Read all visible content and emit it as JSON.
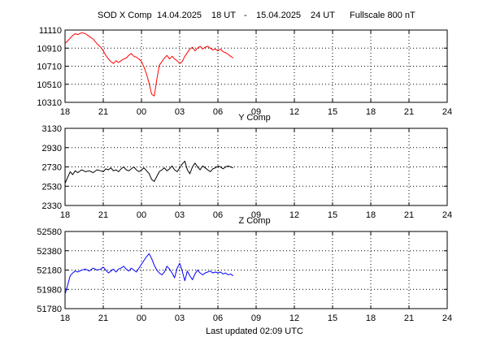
{
  "header": {
    "station": "SOD X Comp",
    "start_date": "14.04.2025",
    "start_hour": "18 UT",
    "dash": "-",
    "end_date": "15.04.2025",
    "end_hour": "24 UT",
    "fullscale": "Fullscale 800 nT"
  },
  "footer": {
    "updated": "Last updated  02:09 UTC"
  },
  "x_tick_labels": [
    "18",
    "21",
    "00",
    "03",
    "06",
    "09",
    "12",
    "15",
    "18",
    "21",
    "24"
  ],
  "chart_data": [
    {
      "type": "line",
      "title": "",
      "color": "#ff0000",
      "xlabel": "",
      "ylabel": "",
      "xlim": [
        0,
        30
      ],
      "ylim": [
        10310,
        11110
      ],
      "y_ticks": [
        10310,
        10510,
        10710,
        10910,
        11110
      ],
      "grid": true,
      "series": [
        {
          "x": [
            0,
            0.2,
            0.4,
            0.6,
            0.8,
            1.0,
            1.3,
            1.6,
            1.9,
            2.2,
            2.5,
            2.8,
            3.0,
            3.2,
            3.4,
            3.6,
            3.8,
            4.0,
            4.2,
            4.4,
            4.6,
            4.8,
            5.0,
            5.2,
            5.4,
            5.6,
            5.8,
            6.0,
            6.2,
            6.4,
            6.6,
            6.8,
            7.0,
            7.2,
            7.4,
            7.6,
            7.8,
            8.0,
            8.2,
            8.4,
            8.6,
            8.8,
            9.0,
            9.2,
            9.4,
            9.6,
            9.8,
            10.0,
            10.2,
            10.4,
            10.6,
            10.8,
            11.0,
            11.2,
            11.4,
            11.6,
            11.8,
            12.0,
            12.2,
            12.4,
            12.6,
            12.8,
            13.0,
            13.2
          ],
          "y": [
            10960,
            10990,
            11020,
            11050,
            11070,
            11060,
            11080,
            11070,
            11040,
            11010,
            10960,
            10920,
            10880,
            10830,
            10790,
            10760,
            10740,
            10770,
            10750,
            10770,
            10790,
            10800,
            10830,
            10850,
            10820,
            10810,
            10790,
            10760,
            10700,
            10620,
            10520,
            10400,
            10380,
            10560,
            10720,
            10760,
            10800,
            10830,
            10790,
            10820,
            10790,
            10770,
            10740,
            10760,
            10820,
            10860,
            10900,
            10920,
            10880,
            10910,
            10930,
            10900,
            10920,
            10930,
            10910,
            10890,
            10900,
            10880,
            10900,
            10870,
            10860,
            10840,
            10820,
            10800
          ]
        }
      ]
    },
    {
      "type": "line",
      "title": "Y Comp",
      "color": "#000000",
      "xlabel": "",
      "ylabel": "",
      "xlim": [
        0,
        30
      ],
      "ylim": [
        2330,
        3130
      ],
      "y_ticks": [
        2330,
        2530,
        2730,
        2930,
        3130
      ],
      "grid": true,
      "series": [
        {
          "x": [
            0,
            0.2,
            0.4,
            0.6,
            0.8,
            1.0,
            1.3,
            1.6,
            1.9,
            2.2,
            2.5,
            2.8,
            3.0,
            3.2,
            3.4,
            3.6,
            3.8,
            4.0,
            4.2,
            4.4,
            4.6,
            4.8,
            5.0,
            5.2,
            5.4,
            5.6,
            5.8,
            6.0,
            6.2,
            6.4,
            6.6,
            6.8,
            7.0,
            7.2,
            7.4,
            7.6,
            7.8,
            8.0,
            8.2,
            8.4,
            8.6,
            8.8,
            9.0,
            9.2,
            9.4,
            9.6,
            9.8,
            10.0,
            10.2,
            10.4,
            10.6,
            10.8,
            11.0,
            11.2,
            11.4,
            11.6,
            11.8,
            12.0,
            12.2,
            12.4,
            12.6,
            12.8,
            13.0,
            13.2
          ],
          "y": [
            2560,
            2620,
            2680,
            2650,
            2690,
            2670,
            2700,
            2680,
            2690,
            2670,
            2700,
            2690,
            2680,
            2710,
            2700,
            2720,
            2690,
            2700,
            2680,
            2710,
            2730,
            2700,
            2690,
            2710,
            2730,
            2700,
            2680,
            2700,
            2720,
            2690,
            2660,
            2600,
            2580,
            2630,
            2680,
            2700,
            2720,
            2690,
            2710,
            2740,
            2700,
            2680,
            2720,
            2760,
            2790,
            2700,
            2660,
            2730,
            2770,
            2730,
            2700,
            2740,
            2720,
            2700,
            2680,
            2710,
            2720,
            2740,
            2730,
            2710,
            2730,
            2740,
            2730,
            2720
          ]
        }
      ]
    },
    {
      "type": "line",
      "title": "Z Comp",
      "color": "#0000ff",
      "xlabel": "",
      "ylabel": "",
      "xlim": [
        0,
        30
      ],
      "ylim": [
        51780,
        52580
      ],
      "y_ticks": [
        51780,
        51980,
        52180,
        52380,
        52580
      ],
      "grid": true,
      "series": [
        {
          "x": [
            0,
            0.2,
            0.4,
            0.6,
            0.8,
            1.0,
            1.3,
            1.6,
            1.9,
            2.2,
            2.5,
            2.8,
            3.0,
            3.2,
            3.4,
            3.6,
            3.8,
            4.0,
            4.2,
            4.4,
            4.6,
            4.8,
            5.0,
            5.2,
            5.4,
            5.6,
            5.8,
            6.0,
            6.2,
            6.4,
            6.6,
            6.8,
            7.0,
            7.2,
            7.4,
            7.6,
            7.8,
            8.0,
            8.2,
            8.4,
            8.6,
            8.8,
            9.0,
            9.2,
            9.4,
            9.6,
            9.8,
            10.0,
            10.2,
            10.4,
            10.6,
            10.8,
            11.0,
            11.2,
            11.4,
            11.6,
            11.8,
            12.0,
            12.2,
            12.4,
            12.6,
            12.8,
            13.0,
            13.2
          ],
          "y": [
            51930,
            52020,
            52120,
            52150,
            52170,
            52160,
            52180,
            52190,
            52170,
            52200,
            52180,
            52190,
            52210,
            52180,
            52150,
            52170,
            52190,
            52160,
            52190,
            52200,
            52220,
            52190,
            52170,
            52200,
            52180,
            52160,
            52200,
            52240,
            52280,
            52320,
            52350,
            52300,
            52230,
            52180,
            52150,
            52130,
            52160,
            52220,
            52190,
            52150,
            52100,
            52200,
            52250,
            52170,
            52070,
            52170,
            52120,
            52080,
            52140,
            52180,
            52150,
            52130,
            52150,
            52160,
            52170,
            52150,
            52160,
            52150,
            52160,
            52140,
            52150,
            52130,
            52140,
            52120
          ]
        }
      ]
    }
  ]
}
